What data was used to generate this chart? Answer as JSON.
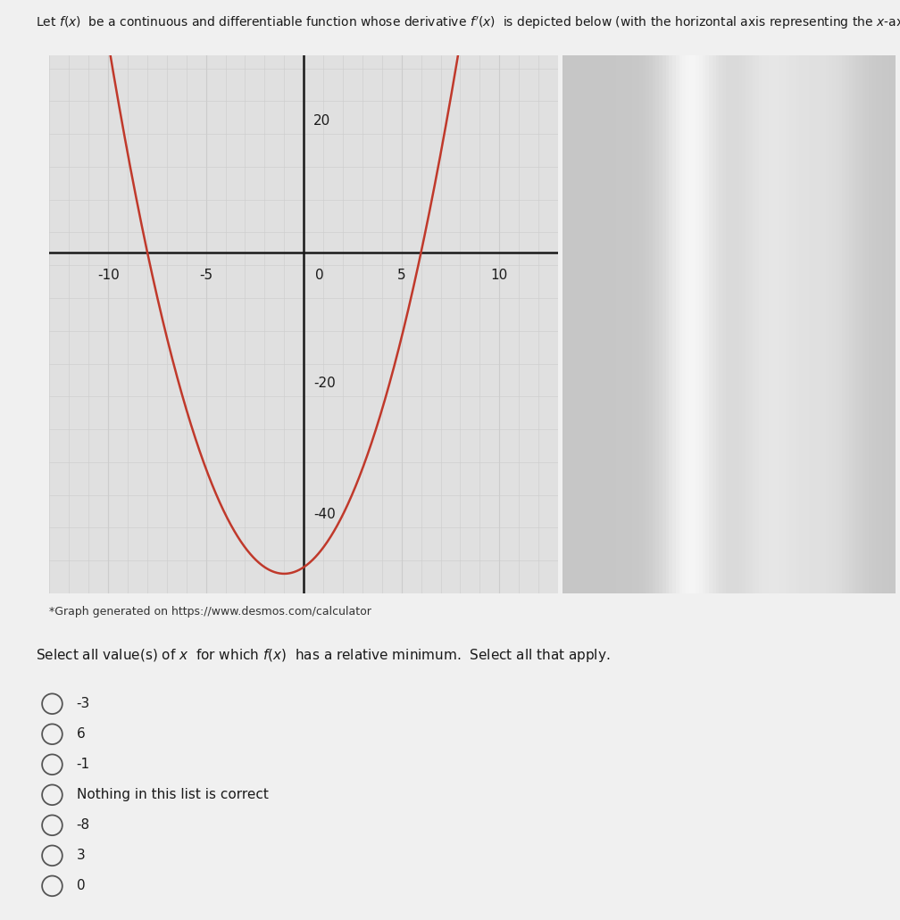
{
  "title_text": "Let $f(x)$ be a continuous and differentiable function whose derivative $f'(x)$ is depicted below (with the horizontal axis representing the $x$-axis).",
  "desmos_credit": "*Graph generated on https://www.desmos.com/calculator",
  "question_text": "Select all value(s) of $x$  for which $f(x)$  has a relative minimum.  Select all that apply.",
  "choices": [
    "-3",
    "6",
    "-1",
    "Nothing in this list is correct",
    "-8",
    "3",
    "0"
  ],
  "curve_color": "#c0392b",
  "curve_linewidth": 1.8,
  "xlim": [
    -13,
    13
  ],
  "ylim": [
    -52,
    30
  ],
  "xticks": [
    -10,
    -5,
    0,
    5,
    10
  ],
  "yticks": [
    -40,
    -20,
    0,
    20
  ],
  "grid_minor_color": "#cccccc",
  "grid_major_color": "#bbbbbb",
  "axis_color": "#1a1a1a",
  "background_color": "#e0e0e0",
  "panel_color": "#f0f0f0",
  "fig_width": 10.08,
  "fig_height": 10.31,
  "a": 1,
  "b": 2,
  "c": -48
}
